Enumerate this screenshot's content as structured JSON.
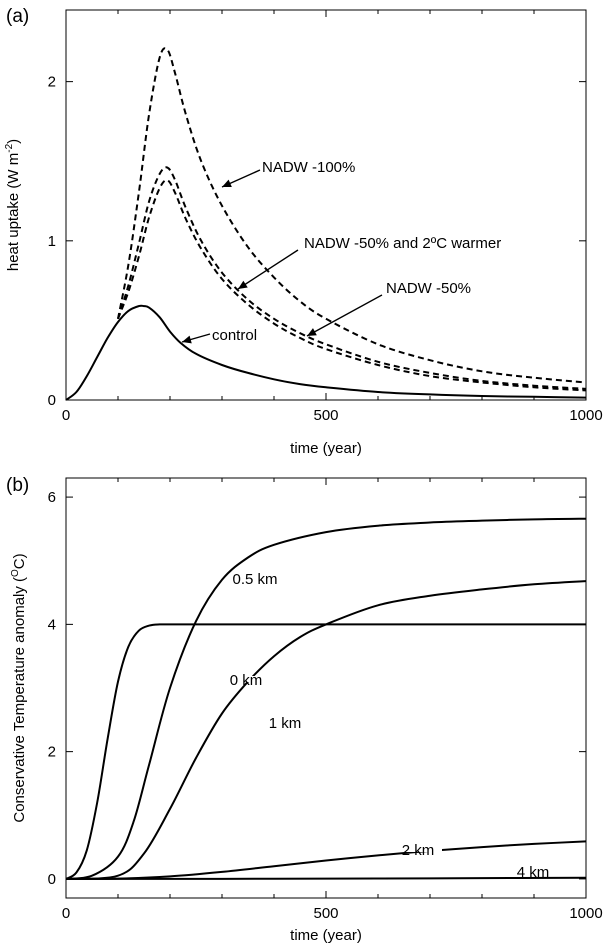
{
  "chart_data": [
    {
      "type": "line",
      "panel_label": "(a)",
      "xlabel": "time (year)",
      "ylabel": "heat uptake (W m",
      "ylabel_sup": "-2",
      "ylabel_tail": ")",
      "xlim": [
        0,
        1000
      ],
      "ylim": [
        0,
        2.45
      ],
      "xticks": [
        0,
        500,
        1000
      ],
      "yticks": [
        0,
        1,
        2
      ],
      "minor_xticks": [
        100,
        200,
        300,
        400,
        600,
        700,
        800,
        900
      ],
      "grid": false,
      "series": [
        {
          "name": "control",
          "dash": "solid",
          "x": [
            0,
            20,
            40,
            60,
            80,
            100,
            120,
            140,
            150,
            160,
            180,
            200,
            220,
            250,
            300,
            350,
            400,
            450,
            500,
            600,
            700,
            800,
            900,
            1000
          ],
          "y": [
            0,
            0.05,
            0.15,
            0.27,
            0.39,
            0.49,
            0.56,
            0.59,
            0.59,
            0.58,
            0.52,
            0.43,
            0.36,
            0.29,
            0.22,
            0.17,
            0.13,
            0.1,
            0.08,
            0.05,
            0.035,
            0.025,
            0.02,
            0.015
          ]
        },
        {
          "name": "NADW -50%",
          "dash": "dashed",
          "x": [
            100,
            120,
            140,
            160,
            180,
            195,
            210,
            230,
            260,
            300,
            350,
            400,
            450,
            500,
            600,
            700,
            800,
            900,
            1000
          ],
          "y": [
            0.51,
            0.68,
            0.9,
            1.15,
            1.33,
            1.38,
            1.3,
            1.14,
            0.95,
            0.76,
            0.6,
            0.48,
            0.39,
            0.32,
            0.22,
            0.15,
            0.11,
            0.08,
            0.06
          ]
        },
        {
          "name": "NADW -50% and 2ºC warmer",
          "dash": "dashed",
          "x": [
            100,
            120,
            140,
            160,
            180,
            195,
            210,
            230,
            260,
            300,
            350,
            400,
            450,
            500,
            600,
            700,
            800,
            900,
            1000
          ],
          "y": [
            0.51,
            0.72,
            0.98,
            1.25,
            1.42,
            1.46,
            1.38,
            1.21,
            1.0,
            0.8,
            0.63,
            0.51,
            0.42,
            0.35,
            0.24,
            0.17,
            0.12,
            0.09,
            0.07
          ]
        },
        {
          "name": "NADW -100%",
          "dash": "dashed",
          "x": [
            100,
            120,
            140,
            160,
            180,
            195,
            210,
            230,
            260,
            300,
            350,
            400,
            450,
            500,
            600,
            700,
            800,
            900,
            1000
          ],
          "y": [
            0.51,
            0.85,
            1.3,
            1.8,
            2.15,
            2.2,
            2.05,
            1.8,
            1.5,
            1.22,
            0.96,
            0.77,
            0.62,
            0.51,
            0.35,
            0.25,
            0.18,
            0.14,
            0.11
          ]
        }
      ],
      "annotations": [
        {
          "text": "NADW -100%",
          "series": "NADW -100%",
          "x": 310,
          "y": 1.35
        },
        {
          "text": "NADW -50% and 2ºC warmer",
          "series": "NADW -50% and 2ºC warmer",
          "x": 330,
          "y": 0.7
        },
        {
          "text": "NADW -50%",
          "series": "NADW -50%",
          "x": 460,
          "y": 0.38
        },
        {
          "text": "control",
          "series": "control",
          "x": 220,
          "y": 0.36
        }
      ]
    },
    {
      "type": "line",
      "panel_label": "(b)",
      "xlabel": "time (year)",
      "ylabel": "Conservative Temperature anomaly (",
      "ylabel_sup": "O",
      "ylabel_tail": "C)",
      "xlim": [
        0,
        1000
      ],
      "ylim": [
        -0.3,
        6.3
      ],
      "xticks": [
        0,
        500,
        1000
      ],
      "yticks": [
        0,
        2,
        4,
        6
      ],
      "minor_xticks": [
        100,
        200,
        300,
        400,
        600,
        700,
        800,
        900
      ],
      "grid": false,
      "series": [
        {
          "name": "0 km",
          "dash": "solid",
          "x": [
            0,
            20,
            40,
            60,
            80,
            100,
            120,
            140,
            160,
            180,
            200,
            250,
            500,
            750,
            1000
          ],
          "y": [
            0,
            0.1,
            0.45,
            1.2,
            2.2,
            3.1,
            3.65,
            3.9,
            3.98,
            4.0,
            4.0,
            4.0,
            4.0,
            4.0,
            4.0
          ]
        },
        {
          "name": "0.5 km",
          "dash": "solid",
          "x": [
            0,
            50,
            100,
            130,
            160,
            200,
            250,
            300,
            350,
            400,
            500,
            600,
            700,
            800,
            900,
            1000
          ],
          "y": [
            0,
            0.05,
            0.35,
            0.9,
            1.8,
            3.0,
            4.05,
            4.7,
            5.05,
            5.25,
            5.45,
            5.55,
            5.6,
            5.63,
            5.65,
            5.66
          ]
        },
        {
          "name": "1 km",
          "dash": "solid",
          "x": [
            0,
            100,
            150,
            200,
            250,
            300,
            350,
            400,
            450,
            500,
            600,
            700,
            800,
            900,
            1000
          ],
          "y": [
            0,
            0.05,
            0.4,
            1.1,
            1.9,
            2.6,
            3.1,
            3.5,
            3.8,
            4.0,
            4.3,
            4.45,
            4.55,
            4.63,
            4.68
          ]
        },
        {
          "name": "2 km",
          "dash": "solid",
          "x": [
            0,
            100,
            200,
            300,
            400,
            500,
            600,
            700,
            800,
            900,
            1000
          ],
          "y": [
            0,
            0.005,
            0.04,
            0.11,
            0.2,
            0.29,
            0.37,
            0.44,
            0.5,
            0.55,
            0.59
          ]
        },
        {
          "name": "4 km",
          "dash": "solid",
          "x": [
            0,
            200,
            400,
            600,
            800,
            1000
          ],
          "y": [
            0,
            0.0,
            0.003,
            0.007,
            0.012,
            0.018
          ]
        }
      ],
      "annotations": [
        {
          "text": "0.5 km",
          "series": "0.5 km"
        },
        {
          "text": "0 km",
          "series": "0 km"
        },
        {
          "text": "1 km",
          "series": "1 km"
        },
        {
          "text": "2 km",
          "series": "2 km"
        },
        {
          "text": "4 km",
          "series": "4 km"
        }
      ]
    }
  ]
}
